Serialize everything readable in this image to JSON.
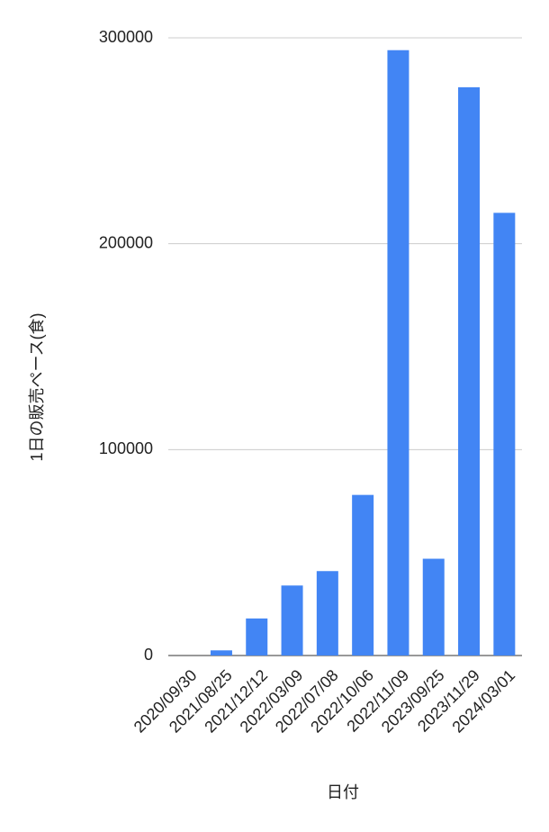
{
  "chart_data": {
    "type": "bar",
    "x_label": "日付",
    "y_label": "1日の販売ペース(食)",
    "categories": [
      "2020/09/30",
      "2021/08/25",
      "2021/12/12",
      "2022/03/09",
      "2022/07/08",
      "2022/10/06",
      "2022/11/09",
      "2023/09/25",
      "2023/11/29",
      "2024/03/01"
    ],
    "values": [
      0,
      2500,
      18000,
      34000,
      41000,
      78000,
      294000,
      47000,
      276000,
      215000
    ],
    "color": "#4285f4",
    "ylim": [
      0,
      300000
    ],
    "yticks": [
      0,
      100000,
      200000,
      300000
    ],
    "grid": true
  }
}
